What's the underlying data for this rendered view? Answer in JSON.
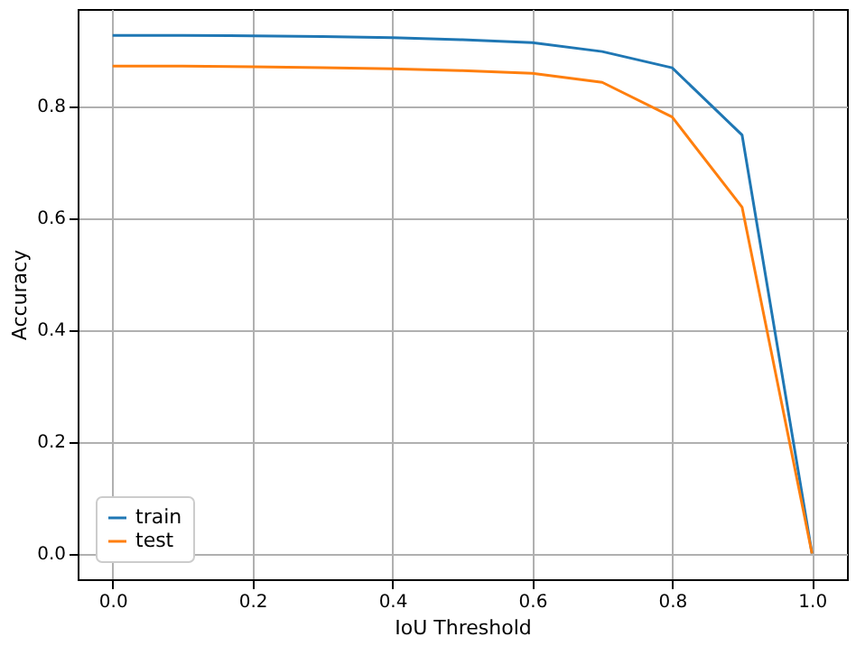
{
  "chart_data": {
    "type": "line",
    "xlabel": "IoU Threshold",
    "ylabel": "Accuracy",
    "x": [
      0.0,
      0.1,
      0.2,
      0.3,
      0.4,
      0.5,
      0.6,
      0.7,
      0.8,
      0.9,
      1.0
    ],
    "series": [
      {
        "name": "train",
        "color": "#1f77b4",
        "values": [
          0.926,
          0.926,
          0.925,
          0.924,
          0.922,
          0.918,
          0.913,
          0.897,
          0.868,
          0.748,
          0.0
        ]
      },
      {
        "name": "test",
        "color": "#ff7f0e",
        "values": [
          0.871,
          0.871,
          0.87,
          0.868,
          0.866,
          0.863,
          0.858,
          0.842,
          0.78,
          0.619,
          0.0
        ]
      }
    ],
    "xlim": [
      -0.05,
      1.05
    ],
    "ylim": [
      -0.046,
      0.973
    ],
    "xticks": [
      {
        "value": 0,
        "label": "0.0"
      },
      0.2,
      0.4,
      0.6,
      0.8,
      {
        "value": 1,
        "label": "1.0"
      }
    ],
    "yticks": [
      {
        "value": 0,
        "label": "0.0"
      },
      0.2,
      0.4,
      0.6,
      0.8
    ],
    "grid": true,
    "legend": "bottom left",
    "marker": "none",
    "line_style": "solid"
  }
}
